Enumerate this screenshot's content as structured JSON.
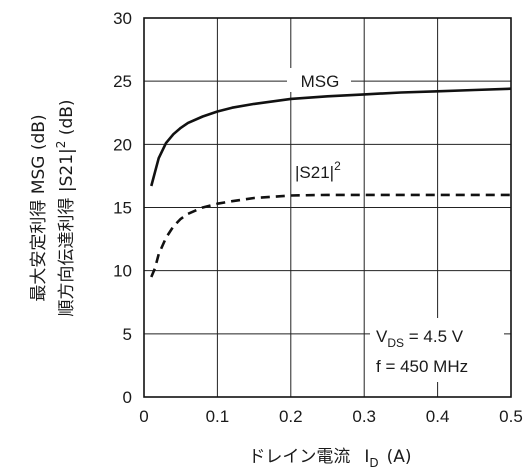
{
  "chart_data": {
    "type": "line",
    "title": "",
    "xlabel": {
      "text": "ドレイン電流",
      "symbol": "I",
      "sub": "D",
      "unit": "(A)"
    },
    "ylabel": {
      "line1": "最大安定利得 MSG (dB)",
      "line2_prefix": "順方向伝達利得 |S21|",
      "line2_sup": "2",
      "line2_suffix": " (dB)"
    },
    "xlim": [
      0,
      0.5
    ],
    "ylim": [
      0,
      30
    ],
    "x_ticks": [
      0,
      0.1,
      0.2,
      0.3,
      0.4,
      0.5
    ],
    "x_tick_labels": [
      "0",
      "0.1",
      "0.2",
      "0.3",
      "0.4",
      "0.5"
    ],
    "y_ticks": [
      0,
      5,
      10,
      15,
      20,
      25,
      30
    ],
    "y_tick_labels": [
      "0",
      "5",
      "10",
      "15",
      "20",
      "25",
      "30"
    ],
    "grid": true,
    "series": [
      {
        "name": "MSG",
        "style": "solid",
        "x": [
          0.01,
          0.015,
          0.02,
          0.03,
          0.04,
          0.05,
          0.06,
          0.08,
          0.1,
          0.12,
          0.15,
          0.2,
          0.25,
          0.3,
          0.35,
          0.4,
          0.45,
          0.5
        ],
        "y": [
          16.7,
          17.8,
          18.9,
          20.1,
          20.8,
          21.3,
          21.7,
          22.2,
          22.6,
          22.9,
          23.2,
          23.6,
          23.8,
          23.95,
          24.1,
          24.2,
          24.3,
          24.4
        ]
      },
      {
        "name": "|S21|²",
        "label_text": "|S21|",
        "label_sup": "2",
        "style": "dashed",
        "x": [
          0.01,
          0.015,
          0.02,
          0.03,
          0.04,
          0.05,
          0.06,
          0.08,
          0.1,
          0.12,
          0.15,
          0.2,
          0.25,
          0.3,
          0.35,
          0.4,
          0.45,
          0.5
        ],
        "y": [
          9.5,
          10.2,
          11.3,
          12.6,
          13.5,
          14.1,
          14.5,
          15.0,
          15.3,
          15.5,
          15.75,
          15.95,
          16.0,
          16.0,
          16.0,
          16.0,
          16.0,
          16.0
        ]
      }
    ],
    "conditions": {
      "vds_symbol": "V",
      "vds_sub": "DS",
      "vds_value": " = 4.5 V",
      "freq": "f = 450 MHz"
    },
    "colors": {
      "line": "#111111",
      "grid": "#222222",
      "background": "#ffffff"
    }
  }
}
